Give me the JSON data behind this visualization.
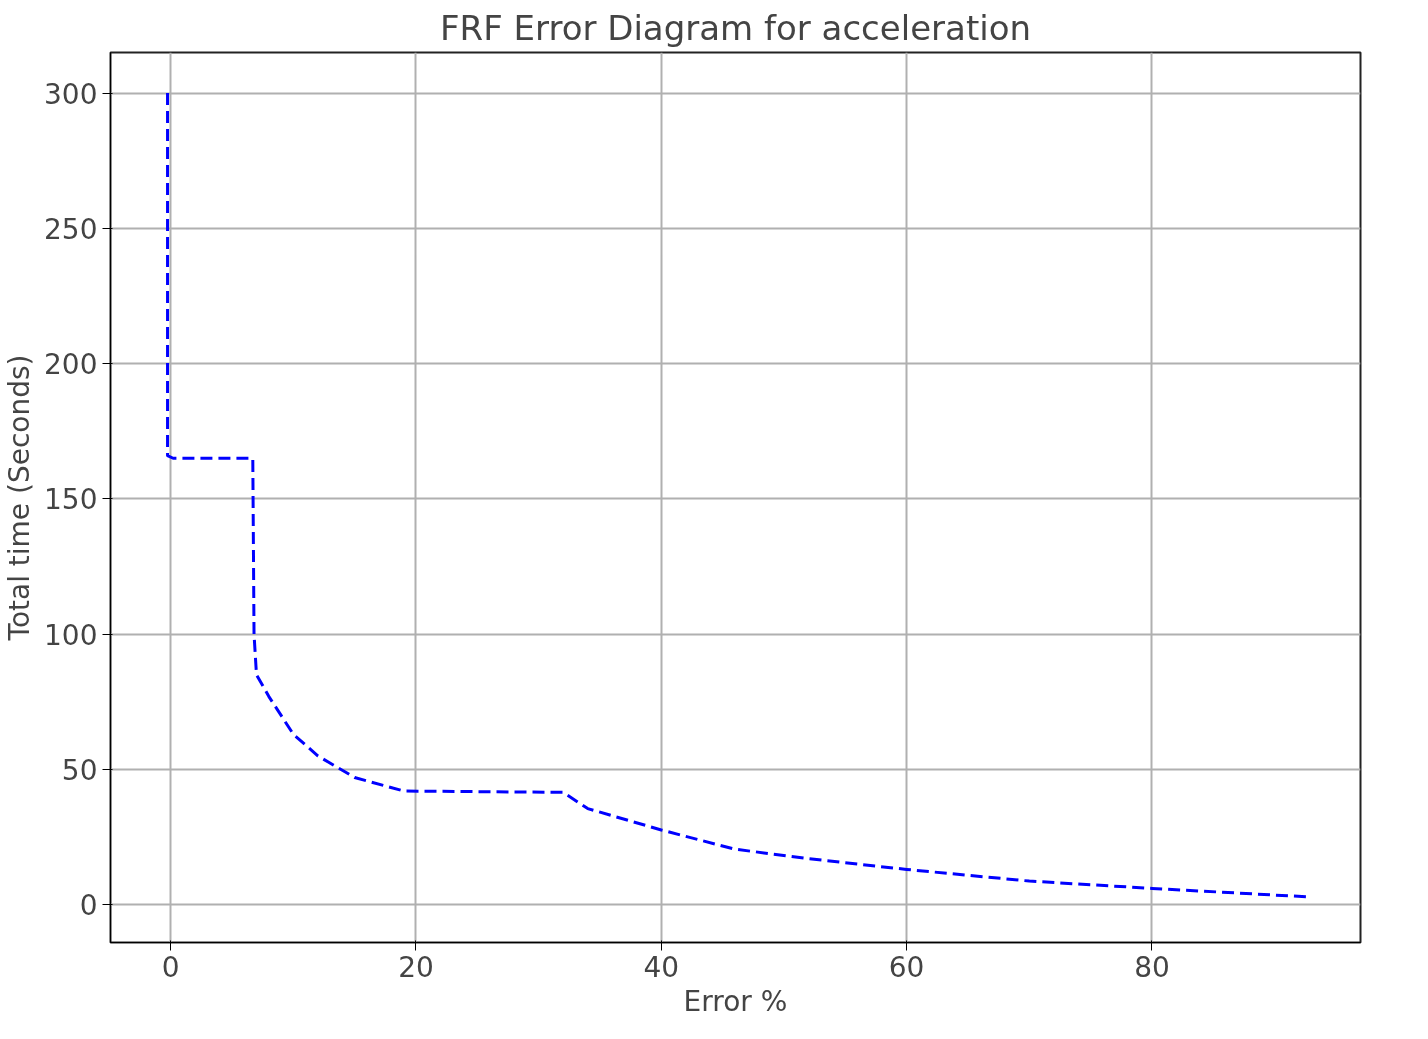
{
  "chart_data": {
    "type": "line",
    "title": "FRF Error Diagram for acceleration",
    "xlabel": "Error %",
    "ylabel": "Total time (Seconds)",
    "x": [
      -0.25,
      -0.25,
      0.2,
      6.7,
      6.8,
      7.0,
      8.0,
      10,
      12,
      15,
      19,
      32,
      34,
      40,
      46,
      52,
      60,
      70,
      80,
      93
    ],
    "series": [
      {
        "color": "#0000ff",
        "values": [
          300,
          166,
          165,
          165,
          100,
          85,
          77,
          63,
          55,
          47,
          42,
          41.5,
          35.5,
          27.6,
          20.5,
          17,
          13,
          8.7,
          6,
          2.8
        ]
      }
    ],
    "xlim": [
      -4.9,
      97
    ],
    "ylim": [
      -14,
      315
    ],
    "xticks": [
      0,
      20,
      40,
      60,
      80
    ],
    "yticks": [
      0,
      50,
      100,
      150,
      200,
      250,
      300
    ],
    "grid": true,
    "line_style": "dashed"
  }
}
